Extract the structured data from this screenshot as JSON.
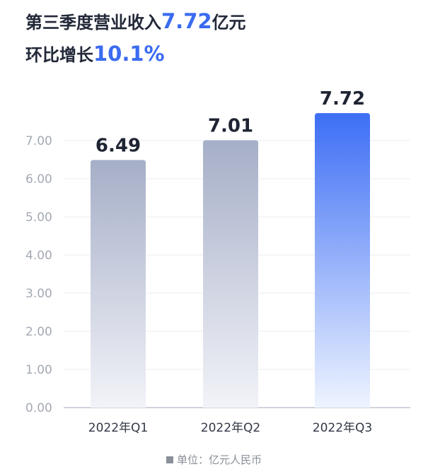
{
  "headline": {
    "line1_prefix": "第三季度营业收入",
    "line1_value": "7.72",
    "line1_suffix": "亿元",
    "line2_prefix": "环比增长",
    "line2_value": "10.1%"
  },
  "footer": {
    "unit_label": "单位：亿元人民币"
  },
  "colors": {
    "highlight": "#3a6bf0",
    "bar_gray_top": "#a6afc8",
    "bar_gray_bottom": "#f2f3f8",
    "bar_blue_top": "#3d6ef5",
    "bar_blue_bottom": "#eef4ff"
  },
  "chart_data": {
    "type": "bar",
    "categories": [
      "2022年Q1",
      "2022年Q2",
      "2022年Q3"
    ],
    "values": [
      6.49,
      7.01,
      7.72
    ],
    "value_labels": [
      "6.49",
      "7.01",
      "7.72"
    ],
    "highlight_index": 2,
    "yticks": [
      "0.00",
      "1.00",
      "2.00",
      "3.00",
      "4.00",
      "5.00",
      "6.00",
      "7.00"
    ],
    "ylim": [
      0,
      7
    ],
    "grid": true
  }
}
